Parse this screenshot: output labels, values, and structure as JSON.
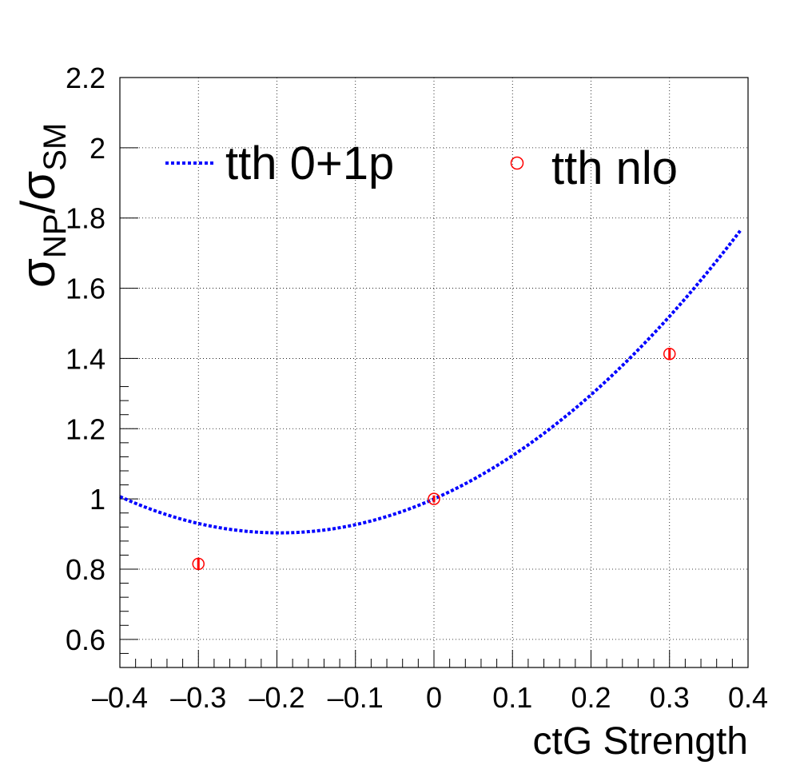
{
  "chart_data": {
    "type": "line",
    "xlabel": "ctG Strength",
    "ylabel": {
      "sym1": "σ",
      "sub1": "NP",
      "slash": "/",
      "sym2": "σ",
      "sub2": "SM"
    },
    "xlim": [
      -0.4,
      0.4
    ],
    "ylim": [
      0.52,
      2.2
    ],
    "x_ticks": [
      "–0.4",
      "–0.3",
      "–0.2",
      "–0.1",
      "0",
      "0.1",
      "0.2",
      "0.3",
      "0.4"
    ],
    "y_ticks": [
      "0.6",
      "0.8",
      "1",
      "1.2",
      "1.4",
      "1.6",
      "1.8",
      "2",
      "2.2"
    ],
    "grid": true,
    "legend_position": "top",
    "series": [
      {
        "name": "tth 0+1p",
        "style": "dotted-line",
        "color": "#0000ff",
        "quadratic_coefficients": {
          "a": 1.0,
          "b": 0.983,
          "c": 2.5
        },
        "x_range": [
          -0.4,
          0.39
        ]
      },
      {
        "name": "tth nlo",
        "style": "open-circle",
        "color": "#ff0000",
        "points": [
          {
            "x": -0.3,
            "y": 0.815,
            "err": 0.015
          },
          {
            "x": 0.0,
            "y": 1.0,
            "err": 0.01
          },
          {
            "x": 0.3,
            "y": 1.413,
            "err": 0.015
          }
        ]
      }
    ]
  }
}
